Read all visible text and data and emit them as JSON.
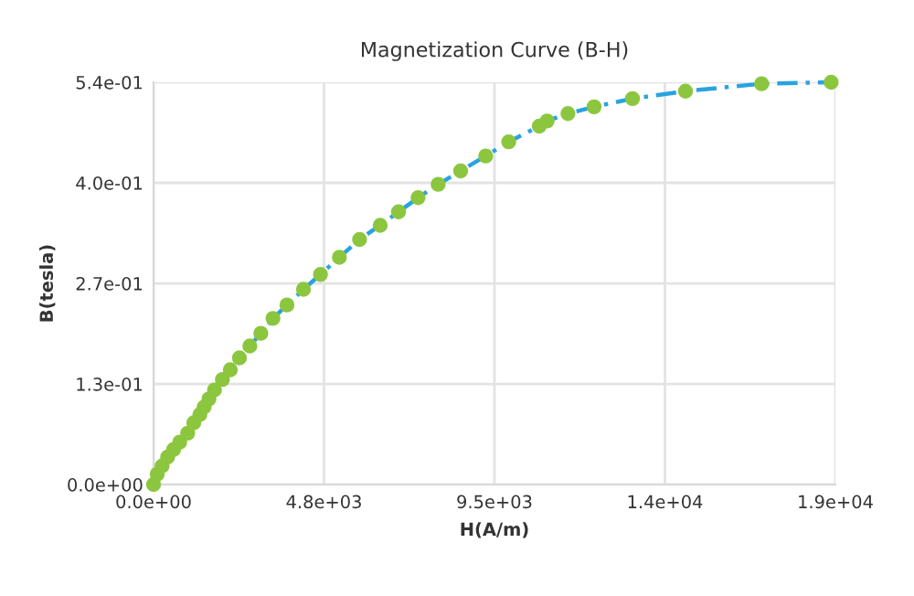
{
  "chart_data": {
    "type": "scatter",
    "title": "Magnetization Curve (B-H)",
    "xlabel": "H(A/m)",
    "ylabel": "B(tesla)",
    "x": [
      0,
      102,
      239,
      392,
      560,
      730,
      951,
      1121,
      1290,
      1410,
      1545,
      1698,
      1919,
      2139,
      2394,
      2683,
      2990,
      3328,
      3718,
      4177,
      4651,
      5178,
      5741,
      6316,
      6826,
      7371,
      7931,
      8557,
      9255,
      9897,
      10748,
      10968,
      11547,
      12276,
      13346,
      14823,
      16944,
      18882
    ],
    "series": [
      {
        "type": "line",
        "color": "#29a3e0",
        "marker": "none",
        "line_style": "dashed",
        "x": [
          2683,
          2990,
          3328,
          3718,
          4177,
          4651,
          5178,
          5741,
          6316,
          6826,
          7371,
          7931,
          8557,
          9255,
          9897,
          10748,
          10968,
          11547,
          12276,
          13346,
          14823,
          16944,
          18882
        ],
        "values": [
          0.186,
          0.203,
          0.223,
          0.241,
          0.262,
          0.282,
          0.305,
          0.329,
          0.348,
          0.366,
          0.385,
          0.403,
          0.421,
          0.441,
          0.46,
          0.481,
          0.488,
          0.498,
          0.507,
          0.518,
          0.528,
          0.538,
          0.54
        ]
      },
      {
        "color": "#8cc63f",
        "marker": "circle",
        "values": [
          0,
          0.014,
          0.025,
          0.037,
          0.047,
          0.057,
          0.069,
          0.083,
          0.094,
          0.104,
          0.115,
          0.127,
          0.141,
          0.154,
          0.17,
          0.186,
          0.203,
          0.223,
          0.241,
          0.262,
          0.282,
          0.305,
          0.329,
          0.348,
          0.366,
          0.385,
          0.403,
          0.421,
          0.441,
          0.46,
          0.481,
          0.488,
          0.498,
          0.507,
          0.518,
          0.528,
          0.538,
          0.54
        ]
      }
    ],
    "xlim": [
      0,
      19000
    ],
    "xticks": [
      {
        "value": 0,
        "label": "0.0e+00"
      },
      {
        "value": 4750,
        "label": "4.8e+03"
      },
      {
        "value": 9500,
        "label": "9.5e+03"
      },
      {
        "value": 14250,
        "label": "1.4e+04"
      },
      {
        "value": 19000,
        "label": "1.9e+04"
      }
    ],
    "ylim": [
      0,
      0.54
    ],
    "yticks": [
      {
        "value": 0,
        "label": "0.0e+00"
      },
      {
        "value": 0.135,
        "label": "1.3e-01"
      },
      {
        "value": 0.27,
        "label": "2.7e-01"
      },
      {
        "value": 0.405,
        "label": "4.0e-01"
      },
      {
        "value": 0.54,
        "label": "5.4e-01"
      }
    ],
    "grid": true
  }
}
